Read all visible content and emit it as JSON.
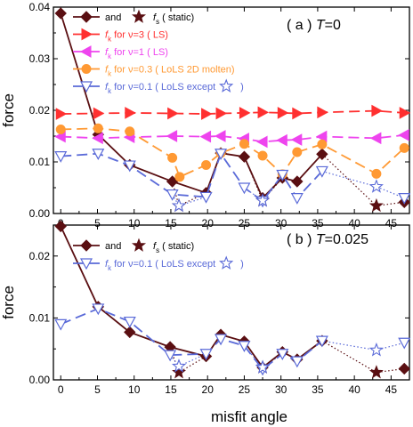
{
  "colors": {
    "static": "#5a0f12",
    "ls3": "#ff3030",
    "ls1": "#ee44ee",
    "lols2d": "#ff9933",
    "lolsexcept": "#5a6ad8",
    "axis": "#000000"
  },
  "shared_x_label": "misfit angle",
  "chart_data": [
    {
      "type": "line",
      "panel_label": "( a )",
      "condition": "T=0",
      "condition_T": "T",
      "condition_val": "=0",
      "ylabel": "force",
      "xlim": [
        -1,
        47.5
      ],
      "ylim": [
        0,
        0.04
      ],
      "xticks": [
        "0",
        "5",
        "10",
        "15",
        "20",
        "25",
        "30",
        "35",
        "40",
        "45"
      ],
      "yticks": [
        "0.00",
        "0.01",
        "0.02",
        "0.03",
        "0.04"
      ],
      "legend": [
        {
          "key": "static",
          "prefix": "and",
          "sym": "f",
          "sub": "s",
          "text": "( static)"
        },
        {
          "key": "ls3",
          "sym": "f",
          "sub": "k",
          "text": "for ν=3  ( LS)"
        },
        {
          "key": "ls1",
          "sym": "f",
          "sub": "k",
          "text": "for ν=1  ( LS)"
        },
        {
          "key": "lols2d",
          "sym": "f",
          "sub": "k",
          "text": "for ν=0.3  ( LoLS 2D molten)"
        },
        {
          "key": "lolsexcept",
          "sym": "f",
          "sub": "k",
          "text": "for ν=0.1  ( LoLS except",
          "suffix": ")"
        }
      ],
      "series": [
        {
          "key": "static",
          "marker": "diamond",
          "dash": "",
          "x": [
            0,
            5.1,
            9.4,
            15.2,
            19.8,
            21.8,
            25.0,
            27.5,
            30.2,
            32.2,
            35.6
          ],
          "y": [
            0.0388,
            0.0153,
            0.0094,
            0.0062,
            0.004,
            0.0117,
            0.011,
            0.003,
            0.0069,
            0.0062,
            0.0115
          ]
        },
        {
          "key": "static",
          "marker": "star",
          "dash": "",
          "x": [
            16.1,
            27.5,
            43.0
          ],
          "y": [
            0.0015,
            0.0025,
            0.0015
          ]
        },
        {
          "key": "static",
          "marker": "diamond",
          "dash": "",
          "x": [
            46.8
          ],
          "y": [
            0.0022
          ]
        },
        {
          "key": "ls3",
          "marker": "triangle-right",
          "dash": "12,6",
          "x": [
            0,
            5.1,
            9.4,
            15.2,
            19.8,
            21.8,
            25.0,
            27.5,
            30.2,
            32.2,
            35.6,
            43.0,
            46.8
          ],
          "y": [
            0.0193,
            0.0194,
            0.0195,
            0.0194,
            0.0193,
            0.0194,
            0.0195,
            0.0196,
            0.0195,
            0.0194,
            0.0196,
            0.0199,
            0.0195
          ]
        },
        {
          "key": "ls1",
          "marker": "triangle-left",
          "dash": "12,6",
          "x": [
            0,
            5.1,
            9.4,
            15.2,
            19.8,
            21.8,
            25.0,
            27.5,
            30.2,
            32.2,
            35.6,
            43.0,
            46.8
          ],
          "y": [
            0.0149,
            0.0146,
            0.0148,
            0.015,
            0.0149,
            0.015,
            0.0145,
            0.0139,
            0.0142,
            0.0143,
            0.0149,
            0.0146,
            0.0152
          ]
        },
        {
          "key": "lols2d",
          "marker": "circle",
          "dash": "12,6",
          "x": [
            0,
            5.1,
            9.4,
            15.2,
            16.2,
            19.8,
            21.8,
            25.0,
            27.5,
            30.2,
            32.2,
            35.6,
            43.0,
            46.8
          ],
          "y": [
            0.0163,
            0.0165,
            0.0159,
            0.0108,
            0.0071,
            0.0094,
            0.0117,
            0.0135,
            0.0112,
            0.0076,
            0.0119,
            0.0134,
            0.0077,
            0.0127
          ]
        },
        {
          "key": "lolsexcept",
          "marker": "triangle-down",
          "dash": "12,6",
          "x": [
            0,
            5.1,
            9.4,
            15.2,
            19.8,
            21.8,
            25.0,
            27.5,
            30.2,
            32.2,
            35.6
          ],
          "y": [
            0.0111,
            0.0116,
            0.0093,
            0.0037,
            0.0032,
            0.0116,
            0.005,
            0.0024,
            0.0075,
            0.003,
            0.0082
          ]
        },
        {
          "key": "lolsexcept",
          "marker": "star-open",
          "dash": "",
          "x": [
            16.1,
            27.5,
            43.0
          ],
          "y": [
            0.0015,
            0.0025,
            0.0052
          ]
        },
        {
          "key": "lolsexcept",
          "marker": "triangle-down",
          "dash": "",
          "x": [
            46.8
          ],
          "y": [
            0.003
          ]
        }
      ],
      "dotted": [
        {
          "key": "static",
          "x": [
            15.2,
            16.1,
            19.8
          ],
          "y": [
            0.0062,
            0.0015,
            0.004
          ]
        },
        {
          "key": "static",
          "x": [
            25.0,
            27.5,
            30.2
          ],
          "y": [
            0.011,
            0.0025,
            0.0069
          ]
        },
        {
          "key": "static",
          "x": [
            35.6,
            43.0,
            46.8
          ],
          "y": [
            0.0115,
            0.0015,
            0.0022
          ]
        },
        {
          "key": "lolsexcept",
          "x": [
            15.2,
            16.1,
            19.8
          ],
          "y": [
            0.0037,
            0.0015,
            0.0032
          ]
        },
        {
          "key": "lolsexcept",
          "x": [
            25.0,
            27.5,
            30.2
          ],
          "y": [
            0.005,
            0.0025,
            0.0075
          ]
        },
        {
          "key": "lolsexcept",
          "x": [
            35.6,
            43.0,
            46.8
          ],
          "y": [
            0.0082,
            0.0052,
            0.003
          ]
        }
      ]
    },
    {
      "type": "line",
      "panel_label": "( b )",
      "condition": "T=0.025",
      "condition_T": "T",
      "condition_val": "=0.025",
      "ylabel": "force",
      "xlim": [
        -1,
        47.5
      ],
      "ylim": [
        0,
        0.025
      ],
      "xticks": [
        "0",
        "5",
        "10",
        "15",
        "20",
        "25",
        "30",
        "35",
        "40",
        "45"
      ],
      "yticks": [
        "0.00",
        "0.01",
        "0.02"
      ],
      "legend": [
        {
          "key": "static",
          "prefix": "and",
          "sym": "f",
          "sub": "s",
          "text": "( static)"
        },
        {
          "key": "lolsexcept",
          "sym": "f",
          "sub": "k",
          "text": "for ν=0.1  ( LoLS except",
          "suffix": ")"
        }
      ],
      "series": [
        {
          "key": "static",
          "marker": "diamond",
          "dash": "",
          "x": [
            0,
            5.1,
            9.4,
            14.9,
            19.8,
            21.8,
            25.0,
            27.5,
            30.2,
            32.2,
            35.6
          ],
          "y": [
            0.0248,
            0.0118,
            0.0077,
            0.0053,
            0.0038,
            0.0073,
            0.0062,
            0.002,
            0.0045,
            0.0033,
            0.0063
          ]
        },
        {
          "key": "static",
          "marker": "star",
          "dash": "",
          "x": [
            16.1,
            27.5,
            43.0
          ],
          "y": [
            0.0012,
            0.002,
            0.0012
          ]
        },
        {
          "key": "static",
          "marker": "diamond",
          "dash": "",
          "x": [
            46.8
          ],
          "y": [
            0.0018
          ]
        },
        {
          "key": "lolsexcept",
          "marker": "triangle-down",
          "dash": "12,6",
          "x": [
            0,
            5.1,
            9.4,
            14.9,
            19.8,
            21.8,
            25.0,
            27.5,
            30.2,
            32.2,
            35.6
          ],
          "y": [
            0.009,
            0.0115,
            0.0094,
            0.004,
            0.0042,
            0.0066,
            0.0055,
            0.0017,
            0.0042,
            0.003,
            0.0063
          ]
        },
        {
          "key": "lolsexcept",
          "marker": "star-open",
          "dash": "",
          "x": [
            16.1,
            27.5,
            43.0
          ],
          "y": [
            0.0022,
            0.002,
            0.0048
          ]
        },
        {
          "key": "lolsexcept",
          "marker": "triangle-down",
          "dash": "",
          "x": [
            46.8
          ],
          "y": [
            0.006
          ]
        }
      ],
      "dotted": [
        {
          "key": "static",
          "x": [
            14.9,
            16.1,
            19.8
          ],
          "y": [
            0.0053,
            0.0012,
            0.0038
          ]
        },
        {
          "key": "static",
          "x": [
            25.0,
            27.5,
            30.2
          ],
          "y": [
            0.0062,
            0.002,
            0.0045
          ]
        },
        {
          "key": "static",
          "x": [
            35.6,
            43.0,
            46.8
          ],
          "y": [
            0.0063,
            0.0012,
            0.0018
          ]
        },
        {
          "key": "lolsexcept",
          "x": [
            14.9,
            16.1,
            19.8
          ],
          "y": [
            0.004,
            0.0022,
            0.0042
          ]
        },
        {
          "key": "lolsexcept",
          "x": [
            25.0,
            27.5,
            30.2
          ],
          "y": [
            0.0055,
            0.002,
            0.0042
          ]
        },
        {
          "key": "lolsexcept",
          "x": [
            35.6,
            43.0,
            46.8
          ],
          "y": [
            0.0063,
            0.0048,
            0.006
          ]
        }
      ]
    }
  ]
}
